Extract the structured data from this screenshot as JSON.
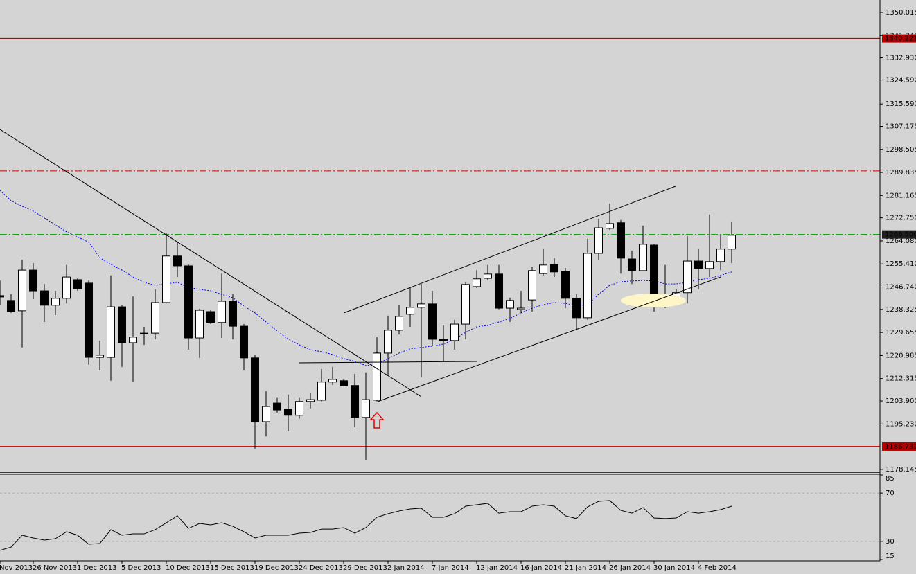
{
  "chart_data": [
    {
      "type": "candlestick",
      "categories": [
        "Nov 2013",
        null,
        null,
        "26 Nov 2013",
        null,
        null,
        null,
        "1 Dec 2013",
        null,
        null,
        null,
        "5 Dec 2013",
        null,
        null,
        null,
        "10 Dec 2013",
        null,
        null,
        null,
        "15 Dec 2013",
        null,
        null,
        null,
        "19 Dec 2013",
        null,
        null,
        null,
        "24 Dec 2013",
        null,
        null,
        null,
        "29 Dec 2013",
        null,
        null,
        null,
        "2 Jan 2014",
        null,
        null,
        null,
        "7 Jan 2014",
        null,
        null,
        null,
        "12 Jan 2014",
        null,
        null,
        null,
        "16 Jan 2014",
        null,
        null,
        null,
        "21 Jan 2014",
        null,
        null,
        null,
        "26 Jan 2014",
        null,
        null,
        null,
        "30 Jan 2014",
        null,
        null,
        null,
        "4 Feb 2014",
        null,
        null,
        null
      ],
      "ohlc": [
        [
          1243.5,
          1249.2,
          1240.1,
          1243.0
        ],
        [
          1241.7,
          1244.0,
          1237.0,
          1237.5
        ],
        [
          1237.8,
          1257.0,
          1224.0,
          1253.1
        ],
        [
          1253.1,
          1255.7,
          1242.2,
          1245.3
        ],
        [
          1245.3,
          1247.9,
          1233.6,
          1239.9
        ],
        [
          1239.9,
          1245.3,
          1236.2,
          1242.5
        ],
        [
          1242.5,
          1255.0,
          1240.6,
          1250.5
        ],
        [
          1249.5,
          1250.0,
          1245.3,
          1246.1
        ],
        [
          1248.2,
          1249.2,
          1217.5,
          1220.3
        ],
        [
          1220.3,
          1226.6,
          1215.4,
          1221.1
        ],
        [
          1220.3,
          1251.1,
          1211.5,
          1239.3
        ],
        [
          1239.3,
          1240.1,
          1216.7,
          1225.8
        ],
        [
          1225.8,
          1243.2,
          1211.0,
          1227.9
        ],
        [
          1229.2,
          1231.8,
          1225.0,
          1229.4
        ],
        [
          1229.4,
          1245.9,
          1227.1,
          1240.9
        ],
        [
          1240.9,
          1266.9,
          1240.6,
          1258.4
        ],
        [
          1258.4,
          1263.6,
          1250.5,
          1254.7
        ],
        [
          1254.7,
          1255.2,
          1223.2,
          1227.6
        ],
        [
          1227.6,
          1238.6,
          1220.1,
          1238.0
        ],
        [
          1237.5,
          1238.0,
          1232.8,
          1233.4
        ],
        [
          1233.4,
          1251.8,
          1227.6,
          1241.4
        ],
        [
          1241.4,
          1244.0,
          1227.1,
          1232.0
        ],
        [
          1232.0,
          1232.8,
          1215.4,
          1220.1
        ],
        [
          1220.1,
          1221.1,
          1186.0,
          1196.1
        ],
        [
          1196.1,
          1207.6,
          1190.6,
          1201.8
        ],
        [
          1203.1,
          1205.0,
          1199.5,
          1200.5
        ],
        [
          1200.8,
          1206.3,
          1192.5,
          1198.5
        ],
        [
          1198.5,
          1205.0,
          1197.2,
          1203.7
        ],
        [
          1203.7,
          1206.8,
          1201.1,
          1204.4
        ],
        [
          1204.2,
          1215.9,
          1203.7,
          1211.0
        ],
        [
          1211.0,
          1216.7,
          1209.9,
          1212.0
        ],
        [
          1211.5,
          1212.0,
          1209.4,
          1209.7
        ],
        [
          1209.7,
          1214.1,
          1194.0,
          1197.7
        ],
        [
          1197.7,
          1214.6,
          1181.8,
          1204.4
        ],
        [
          1204.2,
          1227.9,
          1203.7,
          1221.9
        ],
        [
          1221.9,
          1236.0,
          1213.3,
          1230.5
        ],
        [
          1230.5,
          1240.1,
          1228.9,
          1235.7
        ],
        [
          1236.5,
          1246.6,
          1231.8,
          1239.1
        ],
        [
          1239.1,
          1247.9,
          1212.8,
          1240.4
        ],
        [
          1240.4,
          1245.3,
          1224.5,
          1227.1
        ],
        [
          1227.1,
          1232.3,
          1218.8,
          1226.6
        ],
        [
          1226.6,
          1234.4,
          1223.2,
          1232.8
        ],
        [
          1232.8,
          1248.5,
          1227.1,
          1247.7
        ],
        [
          1246.9,
          1253.1,
          1246.4,
          1249.8
        ],
        [
          1250.0,
          1255.0,
          1249.2,
          1251.6
        ],
        [
          1251.6,
          1255.0,
          1238.3,
          1238.8
        ],
        [
          1238.8,
          1242.7,
          1233.6,
          1241.7
        ],
        [
          1238.3,
          1245.3,
          1237.0,
          1238.8
        ],
        [
          1241.9,
          1254.4,
          1237.5,
          1252.9
        ],
        [
          1251.8,
          1261.0,
          1251.1,
          1255.0
        ],
        [
          1255.2,
          1257.6,
          1250.5,
          1252.4
        ],
        [
          1252.6,
          1253.9,
          1238.8,
          1242.5
        ],
        [
          1242.5,
          1244.0,
          1230.7,
          1235.2
        ],
        [
          1235.2,
          1264.9,
          1234.4,
          1259.4
        ],
        [
          1259.4,
          1272.4,
          1256.8,
          1269.0
        ],
        [
          1268.8,
          1278.1,
          1268.2,
          1270.6
        ],
        [
          1270.9,
          1271.9,
          1251.8,
          1257.6
        ],
        [
          1257.3,
          1260.4,
          1247.9,
          1252.9
        ],
        [
          1252.9,
          1269.8,
          1252.6,
          1262.8
        ],
        [
          1262.5,
          1263.0,
          1237.5,
          1243.8
        ],
        [
          1243.8,
          1255.0,
          1238.8,
          1243.5
        ],
        [
          1242.5,
          1245.9,
          1240.1,
          1244.6
        ],
        [
          1244.6,
          1265.9,
          1240.6,
          1256.5
        ],
        [
          1256.5,
          1261.0,
          1245.9,
          1253.7
        ],
        [
          1253.7,
          1274.0,
          1250.5,
          1256.3
        ],
        [
          1256.3,
          1266.2,
          1253.1,
          1261.0
        ],
        [
          1261.0,
          1271.4,
          1255.7,
          1266.2
        ]
      ],
      "up_color": "#ffffff",
      "down_color": "#000000",
      "wick_color": "#000000",
      "moving_average": {
        "color": "#0000ff",
        "values": [
          1283.1,
          1279.2,
          1277.1,
          1275.3,
          1272.7,
          1270.1,
          1267.5,
          1265.6,
          1263.6,
          1257.8,
          1255.2,
          1253.1,
          1250.5,
          1248.5,
          1247.4,
          1247.9,
          1248.5,
          1246.6,
          1245.9,
          1245.3,
          1244.0,
          1242.7,
          1239.6,
          1237.0,
          1233.6,
          1230.2,
          1227.1,
          1225.0,
          1223.2,
          1222.4,
          1221.4,
          1219.8,
          1218.8,
          1217.2,
          1217.7,
          1219.8,
          1221.9,
          1223.5,
          1224.0,
          1224.5,
          1225.3,
          1227.1,
          1229.7,
          1231.8,
          1232.3,
          1233.6,
          1234.9,
          1237.0,
          1238.8,
          1240.1,
          1240.9,
          1240.6,
          1239.6,
          1240.1,
          1244.0,
          1247.4,
          1248.7,
          1249.0,
          1249.2,
          1249.0,
          1247.9,
          1247.9,
          1248.5,
          1249.5,
          1250.0,
          1251.1,
          1252.4
        ]
      },
      "ylim": [
        1177.6,
        1354.7
      ],
      "yticks": [
        1350.015,
        1341.345,
        {
          "value": 1332.93,
          "label": "1332.930"
        },
        {
          "value": 1324.59,
          "label": "1324.590"
        },
        {
          "value": 1315.59,
          "label": "1315.590"
        },
        1307.175,
        1298.505,
        1289.835,
        1281.165,
        {
          "value": 1272.75,
          "label": "1272.750"
        },
        {
          "value": 1264.08,
          "label": "1264.080"
        },
        {
          "value": 1255.41,
          "label": "1255.410"
        },
        {
          "value": 1246.74,
          "label": "1246.740"
        },
        1238.325,
        1229.655,
        1220.985,
        1212.315,
        {
          "value": 1203.9,
          "label": "1203.900"
        },
        {
          "value": 1195.23,
          "label": "1195.230"
        },
        1178.145
      ],
      "levels": [
        {
          "value": 1340.221,
          "color": "#c00000",
          "style": "solid",
          "show_label": true,
          "box_color": "#b00000"
        },
        {
          "value": 1290.4,
          "color": "#d00000",
          "style": "dashdot",
          "show_label": false
        },
        {
          "value": 1266.5,
          "label": "1266.500",
          "color": "#00a000",
          "style": "dashdot",
          "show_label": true,
          "box_color": "#202020"
        },
        {
          "value": 1186.732,
          "color": "#c00000",
          "style": "solid",
          "show_label": true,
          "box_color": "#b00000"
        }
      ]
    },
    {
      "type": "line",
      "color": "#000000",
      "values": [
        22.5,
        25.3,
        35.1,
        32.8,
        31.1,
        32.2,
        38.0,
        35.1,
        27.6,
        28.2,
        39.7,
        35.1,
        36.2,
        36.2,
        39.7,
        45.4,
        51.2,
        40.8,
        44.8,
        43.7,
        45.4,
        42.5,
        38.0,
        32.8,
        35.1,
        35.1,
        35.1,
        36.8,
        37.4,
        40.2,
        40.2,
        41.4,
        36.8,
        41.4,
        50.0,
        52.9,
        55.2,
        56.9,
        57.5,
        50.0,
        50.0,
        52.9,
        59.2,
        60.3,
        61.5,
        53.4,
        54.6,
        54.6,
        59.2,
        60.3,
        59.2,
        51.2,
        48.9,
        58.6,
        63.2,
        63.8,
        55.7,
        53.4,
        58.0,
        49.4,
        48.9,
        49.4,
        54.6,
        53.4,
        54.6,
        56.3,
        59.2
      ],
      "ylim": [
        15,
        85
      ],
      "yticks": [
        85,
        70,
        30,
        15
      ],
      "grid_ticks": [
        70,
        30
      ]
    }
  ]
}
